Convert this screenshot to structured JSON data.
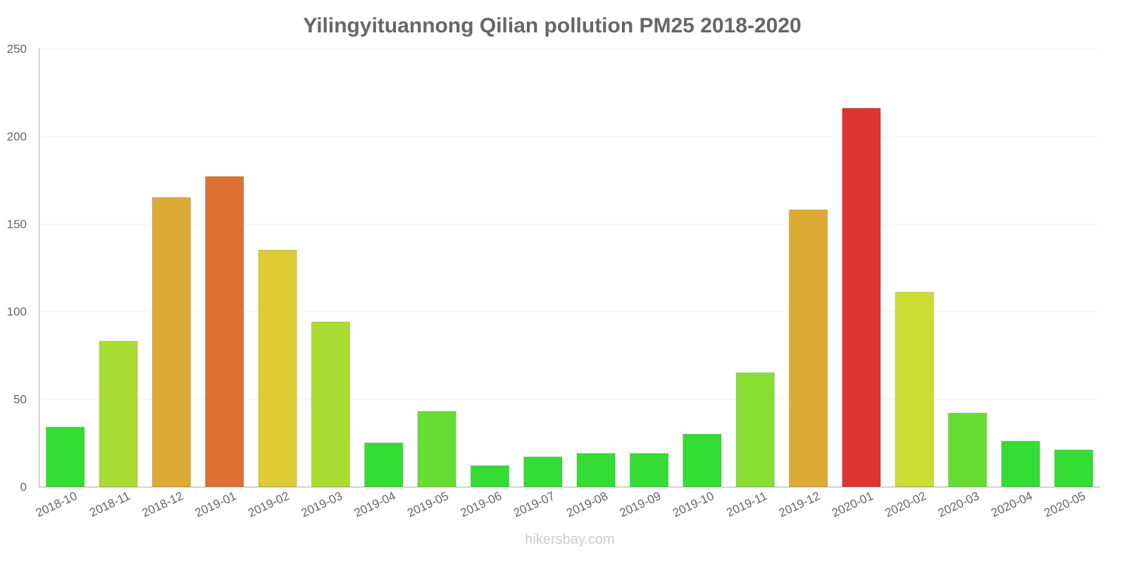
{
  "chart_data": {
    "type": "bar",
    "title": "Yilingyituannong Qilian pollution PM25 2018-2020",
    "xlabel": "",
    "ylabel": "",
    "ylim": [
      0,
      250
    ],
    "yticks": [
      0,
      50,
      100,
      150,
      200,
      250
    ],
    "grid": true,
    "categories": [
      "2018-10",
      "2018-11",
      "2018-12",
      "2019-01",
      "2019-02",
      "2019-03",
      "2019-04",
      "2019-05",
      "2019-06",
      "2019-07",
      "2019-08",
      "2019-09",
      "2019-10",
      "2019-11",
      "2019-12",
      "2020-01",
      "2020-02",
      "2020-03",
      "2020-04",
      "2020-05"
    ],
    "values": [
      34,
      83,
      165,
      177,
      135,
      94,
      25,
      43,
      12,
      17,
      19,
      19,
      30,
      65,
      158,
      216,
      111,
      42,
      26,
      21
    ],
    "colors": [
      "#33dd33",
      "#aadd33",
      "#ddaa33",
      "#dd7033",
      "#ddcc33",
      "#aadd33",
      "#33dd33",
      "#66dd33",
      "#33dd33",
      "#33dd33",
      "#33dd33",
      "#33dd33",
      "#33dd33",
      "#88dd33",
      "#ddaa33",
      "#dd3333",
      "#ccdd33",
      "#66dd33",
      "#33dd33",
      "#33dd33"
    ]
  },
  "footer": {
    "watermark": "hikersbay.com"
  }
}
